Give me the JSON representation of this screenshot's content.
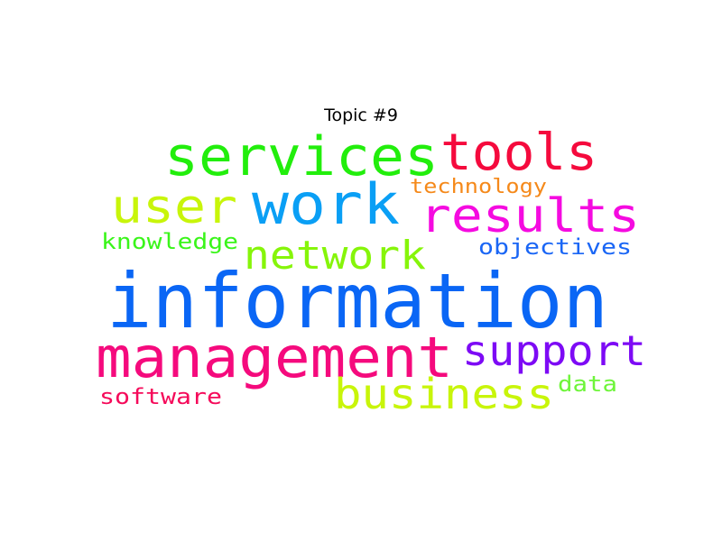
{
  "title": "Topic #9",
  "words": [
    {
      "text": "information",
      "color": "#0a66f5"
    },
    {
      "text": "services",
      "color": "#22ee0c"
    },
    {
      "text": "tools",
      "color": "#f50a3d"
    },
    {
      "text": "work",
      "color": "#0a9ff5"
    },
    {
      "text": "user",
      "color": "#c8f50a"
    },
    {
      "text": "results",
      "color": "#f50ae0"
    },
    {
      "text": "technology",
      "color": "#f5891a"
    },
    {
      "text": "knowledge",
      "color": "#3af51a"
    },
    {
      "text": "network",
      "color": "#86f50a"
    },
    {
      "text": "objectives",
      "color": "#1a66f5"
    },
    {
      "text": "management",
      "color": "#f50a7d"
    },
    {
      "text": "support",
      "color": "#7d0af5"
    },
    {
      "text": "business",
      "color": "#c8f50a"
    },
    {
      "text": "data",
      "color": "#6ef53a"
    },
    {
      "text": "software",
      "color": "#f50a5a"
    }
  ]
}
